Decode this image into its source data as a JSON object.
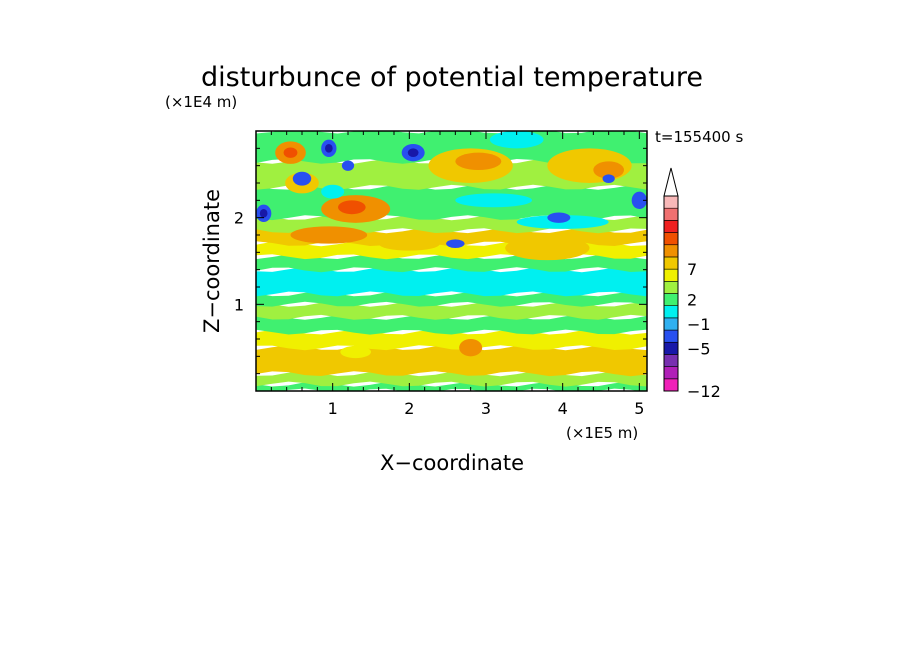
{
  "chart_data": {
    "type": "heatmap",
    "title": "disturbunce of potential temperature",
    "time_label": "t=155400 s",
    "xlabel": "X−coordinate",
    "ylabel": "Z−coordinate",
    "x_unit": "(×1E5 m)",
    "y_unit": "(×1E4 m)",
    "xlim": [
      0,
      5.1
    ],
    "ylim": [
      0,
      3.0
    ],
    "x_ticks": [
      1,
      2,
      3,
      4,
      5
    ],
    "x_tick_labels": [
      "1",
      "2",
      "3",
      "4",
      "5"
    ],
    "y_ticks": [
      1,
      2
    ],
    "y_tick_labels": [
      "1",
      "2"
    ],
    "colorbar": {
      "min": -12,
      "max": 12,
      "extend": "max",
      "colors": [
        "#f020b8",
        "#b020b8",
        "#7830b0",
        "#1818a8",
        "#2850f0",
        "#30b0f0",
        "#00f0f0",
        "#40f070",
        "#a0f040",
        "#f0f000",
        "#f0c800",
        "#f09000",
        "#f05000",
        "#f02020",
        "#f07070",
        "#f8b8b8"
      ],
      "tick_values": [
        -12,
        -5,
        -1,
        2,
        7
      ],
      "tick_labels": [
        "−12",
        "−5",
        "−1",
        "2",
        "7"
      ],
      "tick_steps": [
        0,
        3.5,
        5.5,
        7.5,
        10
      ]
    },
    "bands": [
      {
        "z": [
          0.0,
          0.08
        ],
        "color": "#40f070"
      },
      {
        "z": [
          0.08,
          0.2
        ],
        "color": "#a0f040"
      },
      {
        "z": [
          0.2,
          0.5
        ],
        "color": "#f0c800"
      },
      {
        "z": [
          0.5,
          0.68
        ],
        "color": "#f0f000"
      },
      {
        "z": [
          0.68,
          0.85
        ],
        "color": "#40f070"
      },
      {
        "z": [
          0.85,
          1.0
        ],
        "color": "#a0f040"
      },
      {
        "z": [
          1.0,
          1.12
        ],
        "color": "#40f070"
      },
      {
        "z": [
          1.12,
          1.4
        ],
        "color": "#00f0f0"
      },
      {
        "z": [
          1.4,
          1.55
        ],
        "color": "#40f070"
      },
      {
        "z": [
          1.55,
          1.7
        ],
        "color": "#f0f000"
      },
      {
        "z": [
          1.7,
          1.85
        ],
        "color": "#f0c800"
      },
      {
        "z": [
          1.85,
          2.0
        ],
        "color": "#a0f040"
      },
      {
        "z": [
          2.0,
          2.35
        ],
        "color": "#40f070"
      },
      {
        "z": [
          2.35,
          2.65
        ],
        "color": "#a0f040"
      },
      {
        "z": [
          2.65,
          3.0
        ],
        "color": "#40f070"
      }
    ],
    "blobs": [
      {
        "x": 0.45,
        "z": 2.75,
        "rx": 0.2,
        "rz": 0.13,
        "color": "#f09000"
      },
      {
        "x": 0.45,
        "z": 2.75,
        "rx": 0.09,
        "rz": 0.06,
        "color": "#f05000"
      },
      {
        "x": 0.6,
        "z": 2.4,
        "rx": 0.22,
        "rz": 0.12,
        "color": "#f0c800"
      },
      {
        "x": 1.3,
        "z": 2.1,
        "rx": 0.45,
        "rz": 0.16,
        "color": "#f09000"
      },
      {
        "x": 1.25,
        "z": 2.12,
        "rx": 0.18,
        "rz": 0.08,
        "color": "#f05000"
      },
      {
        "x": 0.95,
        "z": 1.8,
        "rx": 0.5,
        "rz": 0.1,
        "color": "#f09000"
      },
      {
        "x": 2.8,
        "z": 2.6,
        "rx": 0.55,
        "rz": 0.2,
        "color": "#f0c800"
      },
      {
        "x": 2.9,
        "z": 2.65,
        "rx": 0.3,
        "rz": 0.1,
        "color": "#f09000"
      },
      {
        "x": 4.35,
        "z": 2.6,
        "rx": 0.55,
        "rz": 0.2,
        "color": "#f0c800"
      },
      {
        "x": 4.6,
        "z": 2.55,
        "rx": 0.2,
        "rz": 0.1,
        "color": "#f09000"
      },
      {
        "x": 3.8,
        "z": 1.65,
        "rx": 0.55,
        "rz": 0.14,
        "color": "#f0c800"
      },
      {
        "x": 2.0,
        "z": 1.7,
        "rx": 0.4,
        "rz": 0.08,
        "color": "#f0c800"
      },
      {
        "x": 3.1,
        "z": 2.2,
        "rx": 0.5,
        "rz": 0.08,
        "color": "#00f0f0"
      },
      {
        "x": 4.0,
        "z": 1.95,
        "rx": 0.6,
        "rz": 0.08,
        "color": "#00f0f0"
      },
      {
        "x": 3.4,
        "z": 2.9,
        "rx": 0.35,
        "rz": 0.1,
        "color": "#00f0f0"
      },
      {
        "x": 1.0,
        "z": 2.3,
        "rx": 0.15,
        "rz": 0.08,
        "color": "#00f0f0"
      },
      {
        "x": 0.1,
        "z": 2.05,
        "rx": 0.1,
        "rz": 0.1,
        "color": "#2850f0"
      },
      {
        "x": 0.1,
        "z": 2.05,
        "rx": 0.05,
        "rz": 0.05,
        "color": "#1818a8"
      },
      {
        "x": 0.6,
        "z": 2.45,
        "rx": 0.12,
        "rz": 0.08,
        "color": "#2850f0"
      },
      {
        "x": 0.95,
        "z": 2.8,
        "rx": 0.1,
        "rz": 0.1,
        "color": "#2850f0"
      },
      {
        "x": 0.95,
        "z": 2.8,
        "rx": 0.05,
        "rz": 0.05,
        "color": "#1818a8"
      },
      {
        "x": 2.05,
        "z": 2.75,
        "rx": 0.15,
        "rz": 0.1,
        "color": "#2850f0"
      },
      {
        "x": 2.05,
        "z": 2.75,
        "rx": 0.07,
        "rz": 0.05,
        "color": "#1818a8"
      },
      {
        "x": 2.6,
        "z": 1.7,
        "rx": 0.12,
        "rz": 0.05,
        "color": "#2850f0"
      },
      {
        "x": 3.95,
        "z": 2.0,
        "rx": 0.15,
        "rz": 0.06,
        "color": "#2850f0"
      },
      {
        "x": 5.0,
        "z": 2.2,
        "rx": 0.1,
        "rz": 0.1,
        "color": "#2850f0"
      },
      {
        "x": 4.6,
        "z": 2.45,
        "rx": 0.08,
        "rz": 0.05,
        "color": "#2850f0"
      },
      {
        "x": 1.2,
        "z": 2.6,
        "rx": 0.08,
        "rz": 0.06,
        "color": "#2850f0"
      },
      {
        "x": 2.8,
        "z": 0.5,
        "rx": 0.15,
        "rz": 0.1,
        "color": "#f09000"
      },
      {
        "x": 1.3,
        "z": 0.45,
        "rx": 0.2,
        "rz": 0.07,
        "color": "#f0f000"
      }
    ]
  }
}
